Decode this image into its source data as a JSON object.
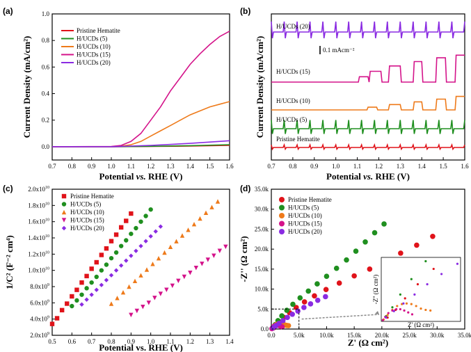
{
  "colors": {
    "pristine": "#e0131a",
    "h5": "#1f8f1f",
    "h10": "#ee7a1a",
    "h15": "#d4138a",
    "h20": "#8a2be2",
    "axis": "#000000"
  },
  "chart_data": [
    {
      "panel": "(a)",
      "type": "line",
      "xlabel_main": "Potential ",
      "xlabel_em": "vs.",
      "xlabel_tail": " RHE (V)",
      "ylabel": "Current Density (mA/cm²)",
      "xlim": [
        0.7,
        1.6
      ],
      "ylim": [
        -0.1,
        1.0
      ],
      "xticks": [
        "0.7",
        "0.8",
        "0.9",
        "1.0",
        "1.1",
        "1.2",
        "1.3",
        "1.4",
        "1.5",
        "1.6"
      ],
      "yticks": [
        "0.0",
        "0.2",
        "0.4",
        "0.6",
        "0.8",
        "1.0"
      ],
      "legend": [
        "Pristine Hematite",
        "H/UCDs (5)",
        "H/UCDs (10)",
        "H/UCDs (15)",
        "H/UCDs (20)"
      ],
      "series": [
        {
          "name": "Pristine Hematite",
          "color": "pristine",
          "x": [
            0.7,
            1.0,
            1.2,
            1.4,
            1.6
          ],
          "y": [
            0.0,
            0.0,
            0.002,
            0.005,
            0.01
          ]
        },
        {
          "name": "H/UCDs (5)",
          "color": "h5",
          "x": [
            0.7,
            1.0,
            1.2,
            1.4,
            1.6
          ],
          "y": [
            0.0,
            0.0,
            0.003,
            0.008,
            0.015
          ]
        },
        {
          "name": "H/UCDs (10)",
          "color": "h10",
          "x": [
            0.7,
            1.0,
            1.05,
            1.1,
            1.15,
            1.2,
            1.25,
            1.3,
            1.35,
            1.4,
            1.45,
            1.5,
            1.55,
            1.6
          ],
          "y": [
            0.0,
            0.0,
            0.004,
            0.015,
            0.04,
            0.08,
            0.12,
            0.16,
            0.2,
            0.24,
            0.27,
            0.3,
            0.32,
            0.34
          ]
        },
        {
          "name": "H/UCDs (15)",
          "color": "h15",
          "x": [
            0.7,
            1.0,
            1.05,
            1.1,
            1.15,
            1.2,
            1.25,
            1.3,
            1.35,
            1.4,
            1.45,
            1.5,
            1.55,
            1.6
          ],
          "y": [
            0.0,
            0.002,
            0.01,
            0.04,
            0.1,
            0.2,
            0.3,
            0.42,
            0.52,
            0.62,
            0.7,
            0.77,
            0.83,
            0.87
          ]
        },
        {
          "name": "H/UCDs (20)",
          "color": "h20",
          "x": [
            0.7,
            1.0,
            1.2,
            1.4,
            1.5,
            1.6
          ],
          "y": [
            0.0,
            0.0,
            0.01,
            0.025,
            0.035,
            0.045
          ]
        }
      ]
    },
    {
      "panel": "(b)",
      "type": "line",
      "xlabel_main": "Potential ",
      "xlabel_em": "vs.",
      "xlabel_tail": " RHE (V)",
      "ylabel": "Current Density (mA/cm²)",
      "xlim": [
        0.7,
        1.6
      ],
      "xticks": [
        "0.7",
        "0.8",
        "0.9",
        "1.0",
        "1.1",
        "1.2",
        "1.3",
        "1.4",
        "1.5",
        "1.6"
      ],
      "scale_bar": "0.1 mAcm⁻²",
      "labels": [
        "H/UCDs (20)",
        "H/UCDs (15)",
        "H/UCDs (10)",
        "H/UCDs (5)",
        "Pristine Hematite"
      ],
      "series": [
        {
          "name": "H/UCDs (20)",
          "color": "h20",
          "baseline": 0.0,
          "light_on": 0.0,
          "spike": 0.012,
          "pulses": []
        },
        {
          "name": "H/UCDs (15)",
          "color": "h15",
          "baseline": 0.0,
          "light_on": 0.0,
          "spike": 0.0,
          "pulses": [
            [
              1.11,
              1.15,
              0.1
            ],
            [
              1.16,
              1.21,
              0.2
            ],
            [
              1.25,
              1.3,
              0.3
            ],
            [
              1.36,
              1.4,
              0.38
            ],
            [
              1.47,
              1.51,
              0.45
            ],
            [
              1.56,
              1.6,
              0.5
            ]
          ]
        },
        {
          "name": "H/UCDs (10)",
          "color": "h10",
          "baseline": 0.0,
          "light_on": 0.0,
          "spike": 0.0,
          "pulses": [
            [
              1.15,
              1.19,
              0.05
            ],
            [
              1.25,
              1.3,
              0.1
            ],
            [
              1.36,
              1.4,
              0.15
            ],
            [
              1.47,
              1.51,
              0.2
            ],
            [
              1.56,
              1.6,
              0.25
            ]
          ]
        },
        {
          "name": "H/UCDs (5)",
          "color": "h5",
          "baseline": 0.0,
          "light_on": 0.0,
          "spike": 0.01,
          "pulses": []
        },
        {
          "name": "Pristine Hematite",
          "color": "pristine",
          "baseline": 0.0,
          "light_on": 0.0,
          "spike": 0.003,
          "pulses": []
        }
      ]
    },
    {
      "panel": "(c)",
      "type": "scatter",
      "xlabel": "Potential vs. RHE (V)",
      "ylabel": "1/C² (F⁻² cm⁴)",
      "xlim": [
        0.5,
        1.4
      ],
      "ylim": [
        2.0,
        20.0
      ],
      "xticks": [
        "0.5",
        "0.6",
        "0.7",
        "0.8",
        "0.9",
        "1.0",
        "1.1",
        "1.2",
        "1.3",
        "1.4"
      ],
      "yticks": [
        {
          "base": "2.0x10",
          "exp": "9"
        },
        {
          "base": "4.0x10",
          "exp": "9"
        },
        {
          "base": "6.0x10",
          "exp": "9"
        },
        {
          "base": "8.0x10",
          "exp": "9"
        },
        {
          "base": "1.0x10",
          "exp": "10"
        },
        {
          "base": "1.2x10",
          "exp": "10"
        },
        {
          "base": "1.4x10",
          "exp": "10"
        },
        {
          "base": "1.6x10",
          "exp": "10"
        },
        {
          "base": "1.8x10",
          "exp": "10"
        },
        {
          "base": "2.0x10",
          "exp": "10"
        }
      ],
      "y_unit": "x10^9",
      "legend": [
        "Pristine Hematite",
        "H/UCDs (5)",
        "H/UCDs (10)",
        "H/UCDs (15)",
        "H/UCDs (20)"
      ],
      "series": [
        {
          "name": "Pristine Hematite",
          "color": "pristine",
          "marker": "square",
          "x": [
            0.5,
            0.525,
            0.55,
            0.575,
            0.6,
            0.625,
            0.65,
            0.675,
            0.7,
            0.725,
            0.75,
            0.775,
            0.8,
            0.825,
            0.85,
            0.875,
            0.9
          ],
          "y": [
            3.4,
            4.1,
            5.1,
            5.9,
            6.8,
            7.6,
            8.5,
            9.3,
            10.2,
            11.0,
            11.9,
            12.7,
            13.6,
            14.4,
            15.3,
            16.1,
            17.0
          ]
        },
        {
          "name": "H/UCDs (5)",
          "color": "h5",
          "marker": "circle",
          "x": [
            0.6,
            0.625,
            0.65,
            0.675,
            0.7,
            0.725,
            0.75,
            0.775,
            0.8,
            0.825,
            0.85,
            0.875,
            0.9,
            0.925,
            0.95,
            0.975,
            1.0
          ],
          "y": [
            5.6,
            6.3,
            7.0,
            7.8,
            8.5,
            9.2,
            10.0,
            10.7,
            11.5,
            12.2,
            13.0,
            13.7,
            14.5,
            15.2,
            16.0,
            16.7,
            17.5
          ]
        },
        {
          "name": "H/UCDs (10)",
          "color": "h10",
          "marker": "triangle-up",
          "x": [
            0.8,
            0.83,
            0.86,
            0.89,
            0.92,
            0.95,
            0.98,
            1.01,
            1.04,
            1.07,
            1.1,
            1.13,
            1.16,
            1.19,
            1.22,
            1.25,
            1.28,
            1.31,
            1.34
          ],
          "y": [
            5.9,
            6.6,
            7.3,
            8.0,
            8.7,
            9.4,
            10.1,
            10.8,
            11.5,
            12.2,
            12.9,
            13.6,
            14.3,
            15.0,
            15.7,
            16.4,
            17.1,
            17.8,
            18.5
          ]
        },
        {
          "name": "H/UCDs (15)",
          "color": "h15",
          "marker": "triangle-down",
          "x": [
            0.9,
            0.93,
            0.96,
            0.99,
            1.02,
            1.05,
            1.08,
            1.11,
            1.14,
            1.17,
            1.2,
            1.23,
            1.26,
            1.29,
            1.32,
            1.35,
            1.38
          ],
          "y": [
            4.5,
            5.0,
            5.5,
            6.0,
            6.6,
            7.1,
            7.6,
            8.1,
            8.7,
            9.2,
            9.7,
            10.3,
            10.8,
            11.3,
            11.8,
            12.4,
            12.9
          ]
        },
        {
          "name": "H/UCDs (20)",
          "color": "h20",
          "marker": "diamond",
          "x": [
            0.65,
            0.675,
            0.7,
            0.725,
            0.75,
            0.775,
            0.8,
            0.825,
            0.85,
            0.875,
            0.9,
            0.925,
            0.95,
            0.975,
            1.0,
            1.025,
            1.05
          ],
          "y": [
            5.8,
            6.4,
            7.0,
            7.6,
            8.2,
            8.8,
            9.4,
            10.0,
            10.6,
            11.2,
            11.8,
            12.4,
            13.0,
            13.6,
            14.2,
            14.8,
            15.4
          ]
        }
      ]
    },
    {
      "panel": "(d)",
      "type": "scatter",
      "xlabel": "Z' (Ω cm²)",
      "ylabel": "-Z'' (Ω cm²)",
      "xlim": [
        0,
        35000
      ],
      "ylim": [
        0,
        35000
      ],
      "xticks": [
        "0.0",
        "5.0k",
        "10.0k",
        "15.0k",
        "20.0k",
        "25.0k",
        "30.0k",
        "35.0k"
      ],
      "yticks": [
        "0.0",
        "5.0k",
        "10.0k",
        "15.0k",
        "20.0k",
        "25.0k",
        "30.0k",
        "35.0k"
      ],
      "legend": [
        "Pristine Hematite",
        "H/UCDs (5)",
        "H/UCDs (10)",
        "H/UCDs (15)",
        "H/UCDs (20)"
      ],
      "series": [
        {
          "name": "Pristine Hematite",
          "color": "pristine",
          "marker": "circle",
          "x": [
            400,
            900,
            1500,
            2300,
            3300,
            4500,
            6000,
            7800,
            9900,
            12300,
            15000,
            17800,
            20600,
            23400,
            26300,
            29200
          ],
          "y": [
            300,
            900,
            1800,
            2900,
            4100,
            5400,
            6800,
            8300,
            9900,
            11500,
            13300,
            15000,
            16900,
            19000,
            21000,
            23200
          ]
        },
        {
          "name": "H/UCDs (5)",
          "color": "h5",
          "marker": "circle",
          "x": [
            300,
            700,
            1200,
            1900,
            2800,
            3900,
            5200,
            6700,
            8300,
            10000,
            11800,
            13600,
            15300,
            17000,
            18700,
            20400
          ],
          "y": [
            400,
            1100,
            2100,
            3300,
            4700,
            6200,
            7800,
            9500,
            11300,
            13200,
            15200,
            17300,
            19500,
            21800,
            24100,
            26300
          ]
        },
        {
          "name": "H/UCDs (10)",
          "color": "h10",
          "marker": "circle",
          "x": [
            150,
            400,
            700,
            1000,
            1300,
            1600,
            1900,
            2200,
            2500,
            2800,
            3100
          ],
          "y": [
            150,
            500,
            900,
            1200,
            1350,
            1400,
            1350,
            1200,
            1000,
            900,
            850
          ]
        },
        {
          "name": "H/UCDs (15)",
          "color": "h15",
          "marker": "circle",
          "x": [
            100,
            250,
            450,
            700,
            950,
            1200,
            1450,
            1700,
            1950
          ],
          "y": [
            100,
            350,
            650,
            850,
            950,
            950,
            850,
            700,
            550
          ]
        },
        {
          "name": "H/UCDs (20)",
          "color": "h20",
          "marker": "circle",
          "x": [
            300,
            800,
            1400,
            2100,
            2900,
            3800,
            4800,
            5900,
            7100,
            8400,
            9800
          ],
          "y": [
            300,
            800,
            1400,
            2100,
            2900,
            3700,
            4500,
            5400,
            6300,
            7200,
            8100
          ]
        }
      ],
      "inset": {
        "xlabel": "Z' (Ω cm²)",
        "ylabel": "-Z'' (Ω cm²)",
        "xlim": [
          0,
          5000
        ],
        "ylim": [
          0,
          5000
        ]
      }
    }
  ]
}
